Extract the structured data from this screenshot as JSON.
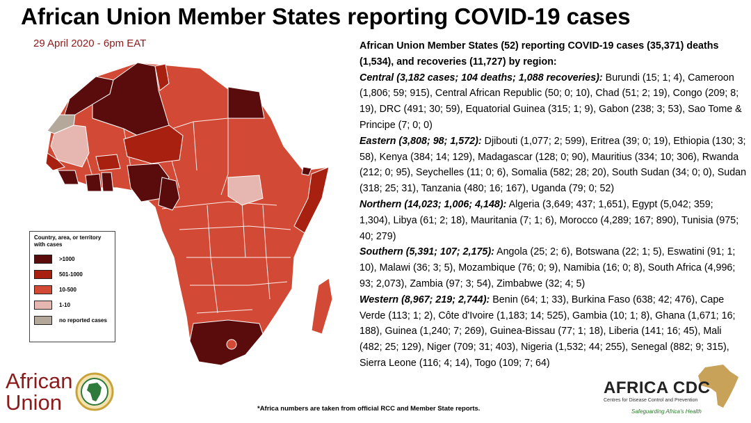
{
  "title": "African Union Member States reporting COVID-19 cases",
  "date": "29 April 2020 - 6pm EAT",
  "legend": {
    "title": "Country, area, or territory with cases",
    "items": [
      {
        "label": ">1000",
        "color": "#5a0c0c"
      },
      {
        "label": "501-1000",
        "color": "#a8200f"
      },
      {
        "label": "10-500",
        "color": "#d24a35"
      },
      {
        "label": "1-10",
        "color": "#e6b7b1"
      },
      {
        "label": "no reported cases",
        "color": "#b3a89a"
      }
    ]
  },
  "summary": {
    "heading": "African Union Member States (52) reporting COVID-19 cases (35,371) deaths (1,534), and recoveries (11,727) by region:",
    "regions": [
      {
        "name": "Central (3,182 cases; 104 deaths; 1,088 recoveries):",
        "text": "Burundi (15; 1; 4), Cameroon (1,806; 59; 915), Central African Republic (50; 0; 10), Chad (51; 2; 19), Congo (209; 8; 19), DRC (491; 30; 59), Equatorial Guinea (315; 1; 9), Gabon (238; 3; 53), Sao Tome & Principe (7; 0; 0)"
      },
      {
        "name": "Eastern (3,808; 98; 1,572):",
        "text": "Djibouti (1,077; 2; 599), Eritrea (39; 0; 19), Ethiopia (130; 3; 58), Kenya (384; 14; 129), Madagascar (128; 0; 90), Mauritius (334; 10; 306), Rwanda (212; 0; 95), Seychelles (11; 0; 6), Somalia (582; 28; 20), South Sudan (34; 0; 0), Sudan (318; 25; 31), Tanzania (480; 16; 167), Uganda (79; 0; 52)"
      },
      {
        "name": "Northern (14,023; 1,006; 4,148):",
        "text": "Algeria (3,649; 437; 1,651), Egypt (5,042; 359; 1,304), Libya (61; 2; 18), Mauritania (7; 1; 6), Morocco (4,289; 167; 890), Tunisia (975; 40; 279)"
      },
      {
        "name": "Southern (5,391; 107; 2,175):",
        "text": "Angola (25; 2; 6), Botswana (22; 1; 5), Eswatini (91; 1; 10), Malawi (36; 3; 5), Mozambique (76; 0; 9),  Namibia (16; 0; 8), South Africa (4,996; 93; 2,073), Zambia (97; 3; 54), Zimbabwe (32; 4; 5)"
      },
      {
        "name": "Western (8,967; 219; 2,744):",
        "text": "Benin (64; 1; 33), Burkina Faso (638; 42; 476), Cape Verde (113; 1; 2), Côte d'Ivoire (1,183; 14; 525), Gambia (10; 1; 8), Ghana (1,671; 16; 188), Guinea (1,240; 7; 269), Guinea-Bissau (77; 1; 18), Liberia (141; 16; 45), Mali (482; 25; 129), Niger (709; 31; 403), Nigeria (1,532; 44; 255), Senegal (882; 9; 315), Sierra Leone (116; 4; 14), Togo (109; 7; 64)"
      }
    ]
  },
  "footnote": "*Africa numbers are taken from official RCC and Member State reports.",
  "logos": {
    "au_line1": "African",
    "au_line2": "Union",
    "cdc_name": "AFRICA CDC",
    "cdc_subtitle": "Centres for Disease Control and Prevention",
    "cdc_tagline": "Safeguarding Africa's Health"
  },
  "colors": {
    "over_1000": "#5a0c0c",
    "range_501_1000": "#a8200f",
    "range_10_500": "#d24a35",
    "range_1_10": "#e6b7b1",
    "no_cases": "#b3a89a",
    "date_text": "#8b1a1a"
  }
}
